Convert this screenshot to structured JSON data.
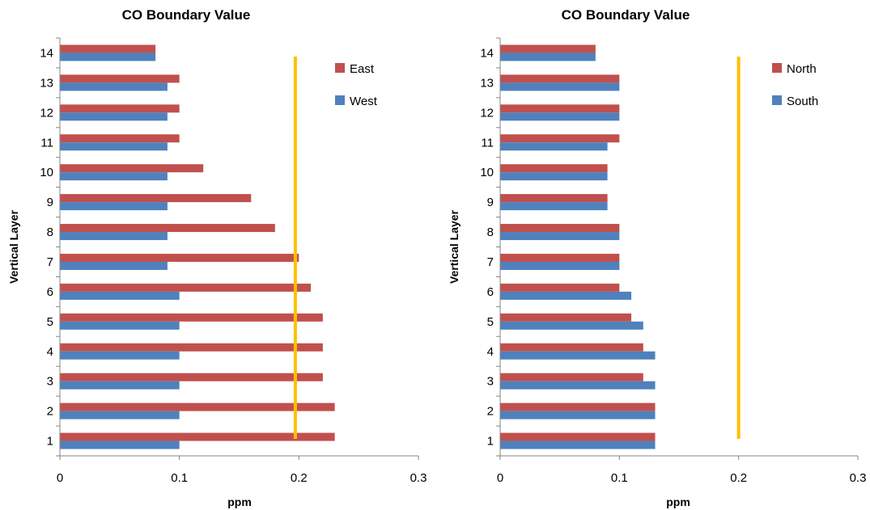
{
  "chart_data": [
    {
      "type": "bar",
      "orientation": "horizontal",
      "title": "CO Boundary Value",
      "xlabel": "ppm",
      "ylabel": "Vertical Layer",
      "xlim": [
        0,
        0.3
      ],
      "xticks": [
        "0",
        "0.1",
        "0.2",
        "0.3"
      ],
      "categories": [
        "1",
        "2",
        "3",
        "4",
        "5",
        "6",
        "7",
        "8",
        "9",
        "10",
        "11",
        "12",
        "13",
        "14"
      ],
      "series": [
        {
          "name": "East",
          "color": "#c0504d",
          "values": [
            0.23,
            0.23,
            0.22,
            0.22,
            0.22,
            0.21,
            0.2,
            0.18,
            0.16,
            0.12,
            0.1,
            0.1,
            0.1,
            0.08
          ]
        },
        {
          "name": "West",
          "color": "#4f81bd",
          "values": [
            0.1,
            0.1,
            0.1,
            0.1,
            0.1,
            0.1,
            0.09,
            0.09,
            0.09,
            0.09,
            0.09,
            0.09,
            0.09,
            0.08
          ]
        }
      ],
      "reference_line": {
        "value": 0.197,
        "color": "#ffc000"
      },
      "legend": "top-right",
      "grid": false
    },
    {
      "type": "bar",
      "orientation": "horizontal",
      "title": "CO Boundary Value",
      "xlabel": "ppm",
      "ylabel": "Vertical Layer",
      "xlim": [
        0,
        0.3
      ],
      "xticks": [
        "0",
        "0.1",
        "0.2",
        "0.3"
      ],
      "categories": [
        "1",
        "2",
        "3",
        "4",
        "5",
        "6",
        "7",
        "8",
        "9",
        "10",
        "11",
        "12",
        "13",
        "14"
      ],
      "series": [
        {
          "name": "North",
          "color": "#c0504d",
          "values": [
            0.13,
            0.13,
            0.12,
            0.12,
            0.11,
            0.1,
            0.1,
            0.1,
            0.09,
            0.09,
            0.1,
            0.1,
            0.1,
            0.08
          ]
        },
        {
          "name": "South",
          "color": "#4f81bd",
          "values": [
            0.13,
            0.13,
            0.13,
            0.13,
            0.12,
            0.11,
            0.1,
            0.1,
            0.09,
            0.09,
            0.09,
            0.1,
            0.1,
            0.08
          ]
        }
      ],
      "reference_line": {
        "value": 0.2,
        "color": "#ffc000"
      },
      "legend": "top-right",
      "grid": false
    }
  ]
}
